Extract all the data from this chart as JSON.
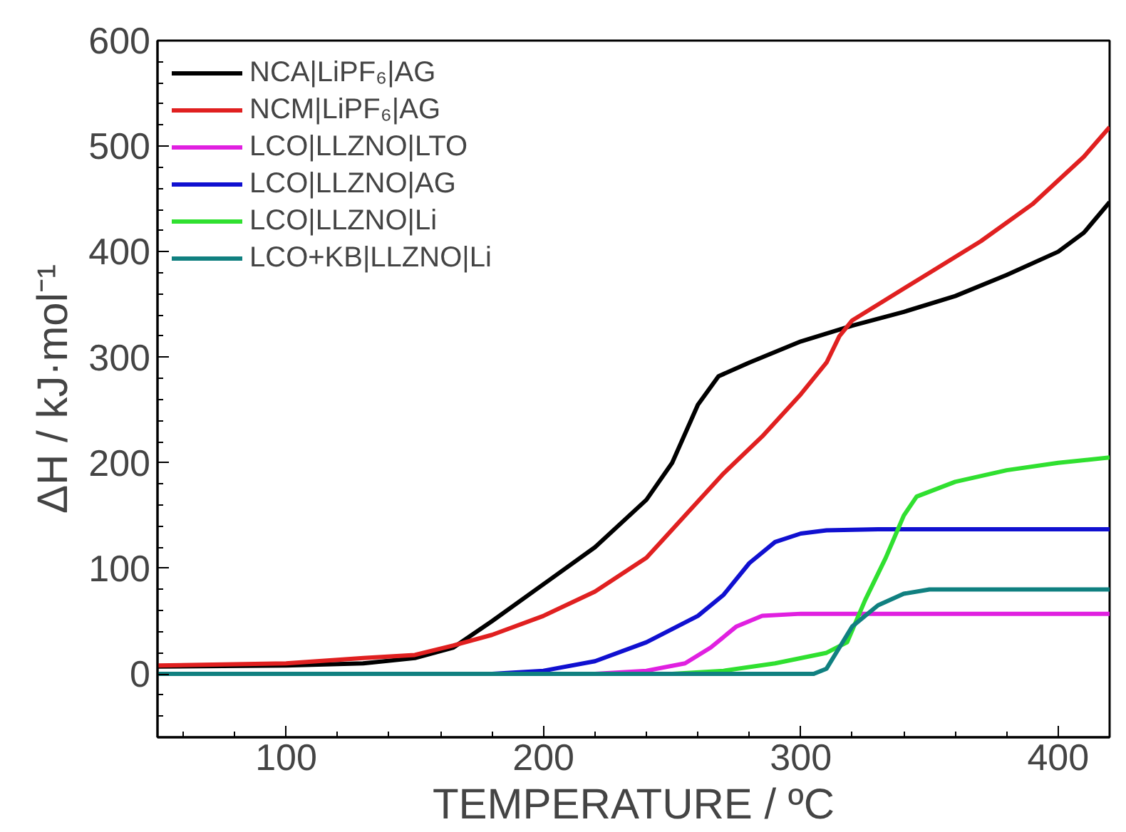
{
  "chart_data": {
    "type": "line",
    "xlabel": "TEMPERATURE / ºC",
    "ylabel": "ΔH / kJ·mol⁻¹",
    "xlim": [
      50,
      420
    ],
    "ylim": [
      -60,
      600
    ],
    "xticks": [
      100,
      200,
      300,
      400
    ],
    "yticks": [
      0,
      100,
      200,
      300,
      400,
      500,
      600
    ],
    "grid": false,
    "legend": "top left",
    "marker": "none",
    "line_style": "solid",
    "series": [
      {
        "name": "NCA|LiPF₆|AG",
        "color": "#000000",
        "x": [
          50,
          100,
          130,
          150,
          165,
          180,
          200,
          220,
          240,
          250,
          260,
          268,
          280,
          300,
          320,
          340,
          360,
          380,
          400,
          410,
          420
        ],
        "values": [
          7,
          8,
          10,
          15,
          25,
          50,
          85,
          120,
          165,
          200,
          255,
          282,
          295,
          315,
          330,
          343,
          358,
          378,
          400,
          418,
          447
        ]
      },
      {
        "name": "NCM|LiPF₆|AG",
        "color": "#e02020",
        "x": [
          50,
          100,
          130,
          150,
          165,
          180,
          200,
          220,
          240,
          255,
          270,
          285,
          300,
          310,
          315,
          320,
          330,
          350,
          370,
          390,
          410,
          420
        ],
        "values": [
          8,
          10,
          15,
          18,
          27,
          37,
          55,
          78,
          110,
          150,
          190,
          225,
          265,
          295,
          320,
          335,
          350,
          380,
          410,
          445,
          490,
          518
        ]
      },
      {
        "name": "LCO|LLZNO|LTO",
        "color": "#e020e0",
        "x": [
          50,
          220,
          240,
          255,
          265,
          275,
          285,
          300,
          420
        ],
        "values": [
          0,
          0,
          3,
          10,
          25,
          45,
          55,
          57,
          57
        ]
      },
      {
        "name": "LCO|LLZNO|AG",
        "color": "#1010d0",
        "x": [
          50,
          180,
          200,
          220,
          240,
          260,
          270,
          280,
          290,
          300,
          310,
          330,
          420
        ],
        "values": [
          0,
          0,
          3,
          12,
          30,
          55,
          75,
          105,
          125,
          133,
          136,
          137,
          137
        ]
      },
      {
        "name": "LCO|LLZNO|Li",
        "color": "#30e030",
        "x": [
          50,
          250,
          270,
          290,
          310,
          318,
          325,
          333,
          340,
          345,
          360,
          380,
          400,
          420
        ],
        "values": [
          0,
          0,
          3,
          10,
          20,
          30,
          70,
          110,
          150,
          168,
          182,
          193,
          200,
          205
        ]
      },
      {
        "name": "LCO+KB|LLZNO|Li",
        "color": "#108080",
        "x": [
          50,
          305,
          310,
          315,
          320,
          330,
          340,
          350,
          420
        ],
        "values": [
          0,
          0,
          5,
          25,
          45,
          65,
          76,
          80,
          80
        ]
      }
    ]
  }
}
